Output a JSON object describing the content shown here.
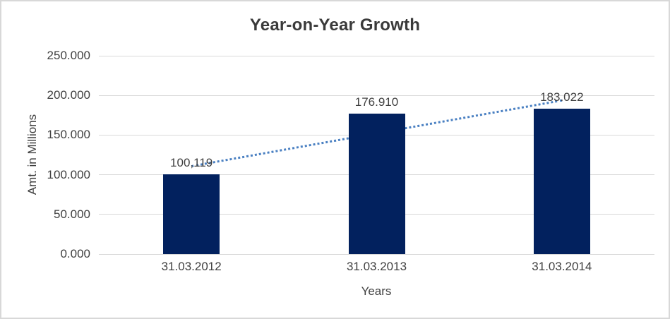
{
  "frame": {
    "background": "#FFFFFF",
    "border_color": "#D8D8D8"
  },
  "chart_data": {
    "type": "bar",
    "title": "Year-on-Year Growth",
    "xlabel": "Years",
    "ylabel": "Amt. in Millions",
    "categories": [
      "31.03.2012",
      "31.03.2013",
      "31.03.2014"
    ],
    "values": [
      100.119,
      176.91,
      183.022
    ],
    "data_labels": [
      "100,119",
      "176.910",
      "183.022"
    ],
    "ylim": [
      0,
      250
    ],
    "ytick_labels": [
      "0.000",
      "50.000",
      "100.000",
      "150.000",
      "200.000",
      "250.000"
    ],
    "grid": true,
    "legend": false,
    "trendline": {
      "type": "linear",
      "style": "dotted"
    },
    "colors": {
      "bar": "#02215E",
      "trendline": "#4A80C2",
      "gridline": "#D9D9D9",
      "axis_text": "#404040",
      "title_text": "#3A3A3A"
    }
  }
}
